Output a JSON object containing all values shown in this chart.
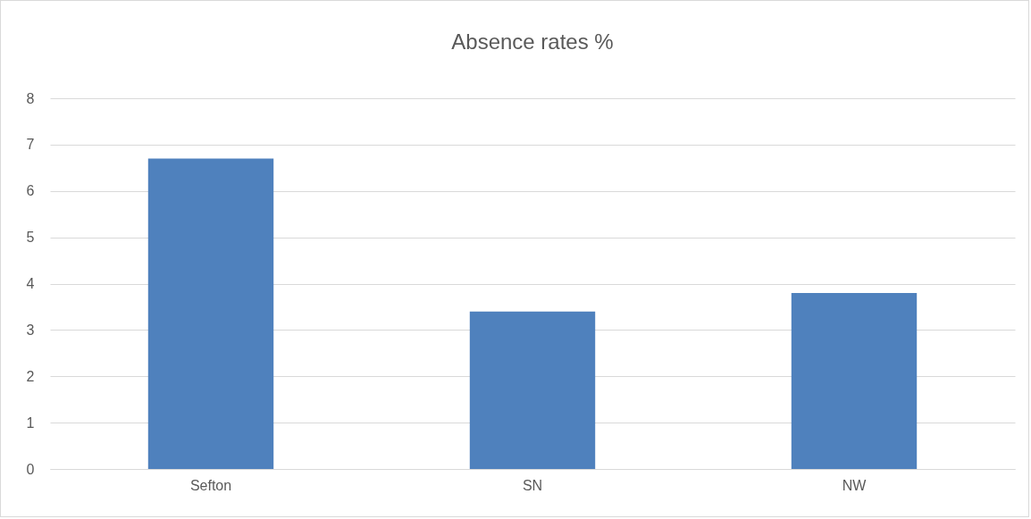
{
  "chart_data": {
    "type": "bar",
    "title": "Absence rates %",
    "categories": [
      "Sefton",
      "SN",
      "NW"
    ],
    "values": [
      6.7,
      3.4,
      3.8
    ],
    "color": "#4f81bd",
    "ylim": [
      0,
      8
    ],
    "yticks": [
      0,
      1,
      2,
      3,
      4,
      5,
      6,
      7,
      8
    ],
    "grid": "y"
  }
}
